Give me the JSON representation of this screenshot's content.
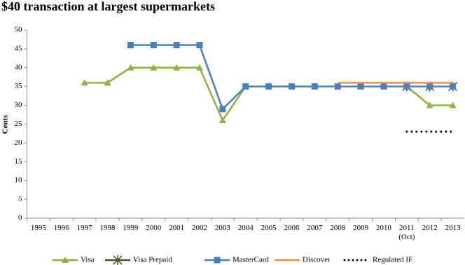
{
  "chart_data": {
    "type": "line",
    "title": "$40 transaction at largest supermarkets",
    "y_label": "Cents",
    "categories": [
      "1995",
      "1996",
      "1997",
      "1998",
      "1999",
      "2000",
      "2001",
      "2002",
      "2003",
      "2004",
      "2005",
      "2006",
      "2007",
      "2008",
      "2009",
      "2010",
      "2011\n(Oct)",
      "2012",
      "2013"
    ],
    "series": [
      {
        "name": "Visa",
        "color": "#8db33a",
        "marker": "triangle",
        "values": [
          null,
          null,
          36,
          36,
          40,
          40,
          40,
          40,
          26,
          35,
          35,
          35,
          35,
          35,
          35,
          35,
          35,
          30,
          30
        ]
      },
      {
        "name": "Visa Prepaid",
        "color": "#3d5a22",
        "marker": "x",
        "values": [
          null,
          null,
          null,
          null,
          null,
          null,
          null,
          null,
          null,
          null,
          null,
          null,
          null,
          null,
          null,
          null,
          35,
          35,
          35
        ]
      },
      {
        "name": "MasterCard",
        "color": "#4a7ebf",
        "marker": "square",
        "values": [
          null,
          null,
          null,
          null,
          46,
          46,
          46,
          46,
          29,
          35,
          35,
          35,
          35,
          35,
          35,
          35,
          35,
          35,
          35
        ]
      },
      {
        "name": "Discover",
        "color": "#f28e3c",
        "marker": "none",
        "values": [
          null,
          null,
          null,
          null,
          null,
          null,
          null,
          null,
          null,
          null,
          null,
          null,
          null,
          36,
          36,
          36,
          36,
          36,
          36
        ]
      },
      {
        "name": "Regulated IF",
        "color": "#000000",
        "marker": "none",
        "line_style": "dotted",
        "values": [
          null,
          null,
          null,
          null,
          null,
          null,
          null,
          null,
          null,
          null,
          null,
          null,
          null,
          null,
          null,
          null,
          23,
          23,
          23
        ]
      }
    ],
    "ylim": [
      0,
      50
    ],
    "yticks": [
      0,
      5,
      10,
      15,
      20,
      25,
      30,
      35,
      40,
      45,
      50
    ],
    "grid": false,
    "legend": "bottom"
  }
}
